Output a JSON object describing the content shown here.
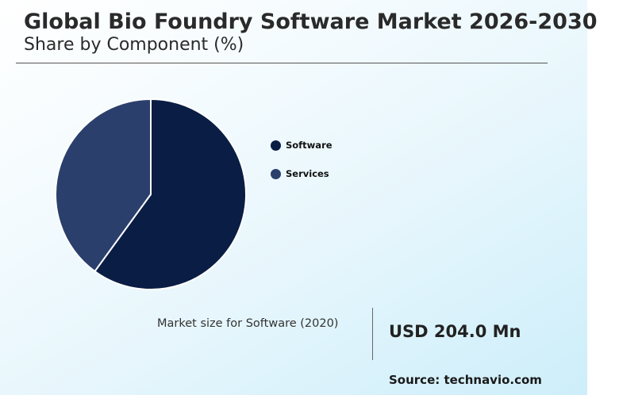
{
  "header": {
    "title": "Global Bio Foundry Software Market 2026-2030",
    "subtitle": "Share by Component (%)"
  },
  "chart_data": {
    "type": "pie",
    "categories": [
      "Software",
      "Services"
    ],
    "values": [
      60,
      40
    ],
    "colors": [
      "#0a1d45",
      "#2b3f6d"
    ],
    "legend_position": "right",
    "start_angle": "12 o'clock, clockwise"
  },
  "metric": {
    "label": "Market size for Software (2020)",
    "value": "USD 204.0 Mn"
  },
  "footer": {
    "source": "Source: technavio.com"
  }
}
